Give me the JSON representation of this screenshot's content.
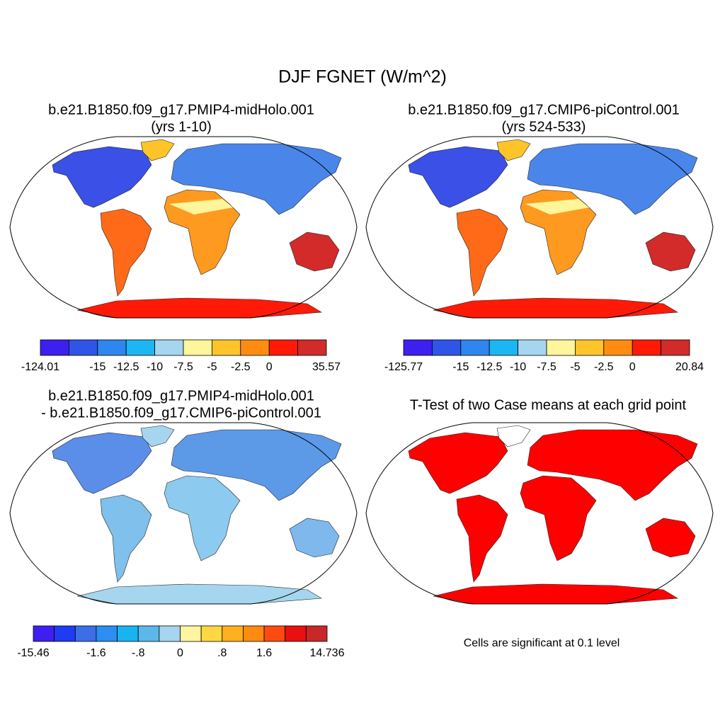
{
  "title": "DJF FGNET (W/m^2)",
  "panels": [
    {
      "title": "b.e21.B1850.f09_g17.PMIP4-midHolo.001",
      "subtitle": "(yrs 1-10)",
      "colorbar": {
        "colors": [
          "#3d1ff0",
          "#2f55e8",
          "#2e86ee",
          "#1cb6f2",
          "#a6d6ef",
          "#fff59a",
          "#ffc42a",
          "#ff8c10",
          "#ff1a08",
          "#d32a2a"
        ],
        "labels": [
          "-124.01",
          null,
          "-15",
          "-12.5",
          "-10",
          "-7.5",
          "-5",
          "-2.5",
          "0",
          null,
          "35.57"
        ]
      }
    },
    {
      "title": "b.e21.B1850.f09_g17.CMIP6-piControl.001",
      "subtitle": "(yrs 524-533)",
      "colorbar": {
        "colors": [
          "#3d1ff0",
          "#2f55e8",
          "#2e86ee",
          "#1cb6f2",
          "#a6d6ef",
          "#fff59a",
          "#ffc42a",
          "#ff8c10",
          "#ff1a08",
          "#d32a2a"
        ],
        "labels": [
          "-125.77",
          null,
          "-15",
          "-12.5",
          "-10",
          "-7.5",
          "-5",
          "-2.5",
          "0",
          null,
          "20.84"
        ]
      }
    },
    {
      "title": "b.e21.B1850.f09_g17.PMIP4-midHolo.001",
      "subtitle": "- b.e21.B1850.f09_g17.CMIP6-piControl.001",
      "colorbar": {
        "colors": [
          "#3f1ff0",
          "#1e3cf5",
          "#3c6ee6",
          "#2b8ef0",
          "#18b4f0",
          "#5cb8e8",
          "#a7d4ef",
          "#fff5a0",
          "#ffd740",
          "#ffb020",
          "#ff8a10",
          "#ff4a10",
          "#e81010",
          "#c82828"
        ],
        "labels": [
          "-15.46",
          null,
          null,
          "-1.6",
          null,
          "-.8",
          null,
          "0",
          null,
          ".8",
          null,
          "1.6",
          null,
          null,
          "14.736"
        ]
      }
    },
    {
      "title": "T-Test of two Case means at each grid point",
      "note": "Cells are significant at 0.1 level"
    }
  ]
}
